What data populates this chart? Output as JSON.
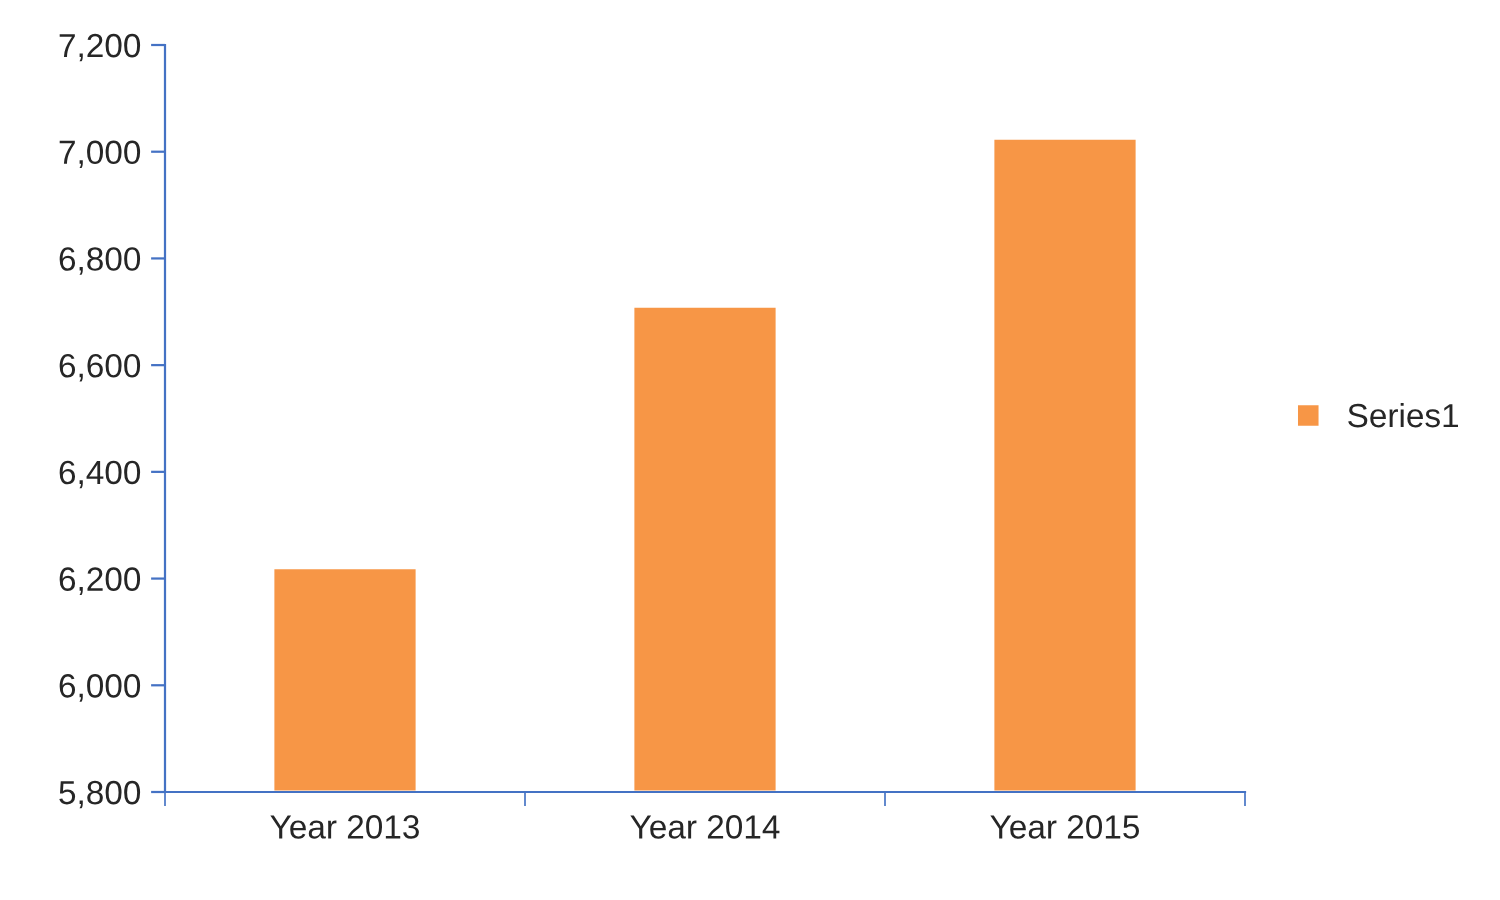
{
  "chart_data": {
    "type": "bar",
    "categories": [
      "Year 2013",
      "Year 2014",
      "Year 2015"
    ],
    "series": [
      {
        "name": "Series1",
        "color": "#f79646",
        "values": [
          6220,
          6710,
          7025
        ]
      }
    ],
    "ylim": [
      5800,
      7200
    ],
    "yticks": [
      {
        "value": 5800,
        "label": "5,800"
      },
      {
        "value": 6000,
        "label": "6,000"
      },
      {
        "value": 6200,
        "label": "6,200"
      },
      {
        "value": 6400,
        "label": "6,400"
      },
      {
        "value": 6600,
        "label": "6,600"
      },
      {
        "value": 6800,
        "label": "6,800"
      },
      {
        "value": 7000,
        "label": "7,000"
      },
      {
        "value": 7200,
        "label": "7,200"
      }
    ],
    "grid": false,
    "legend": "right"
  }
}
